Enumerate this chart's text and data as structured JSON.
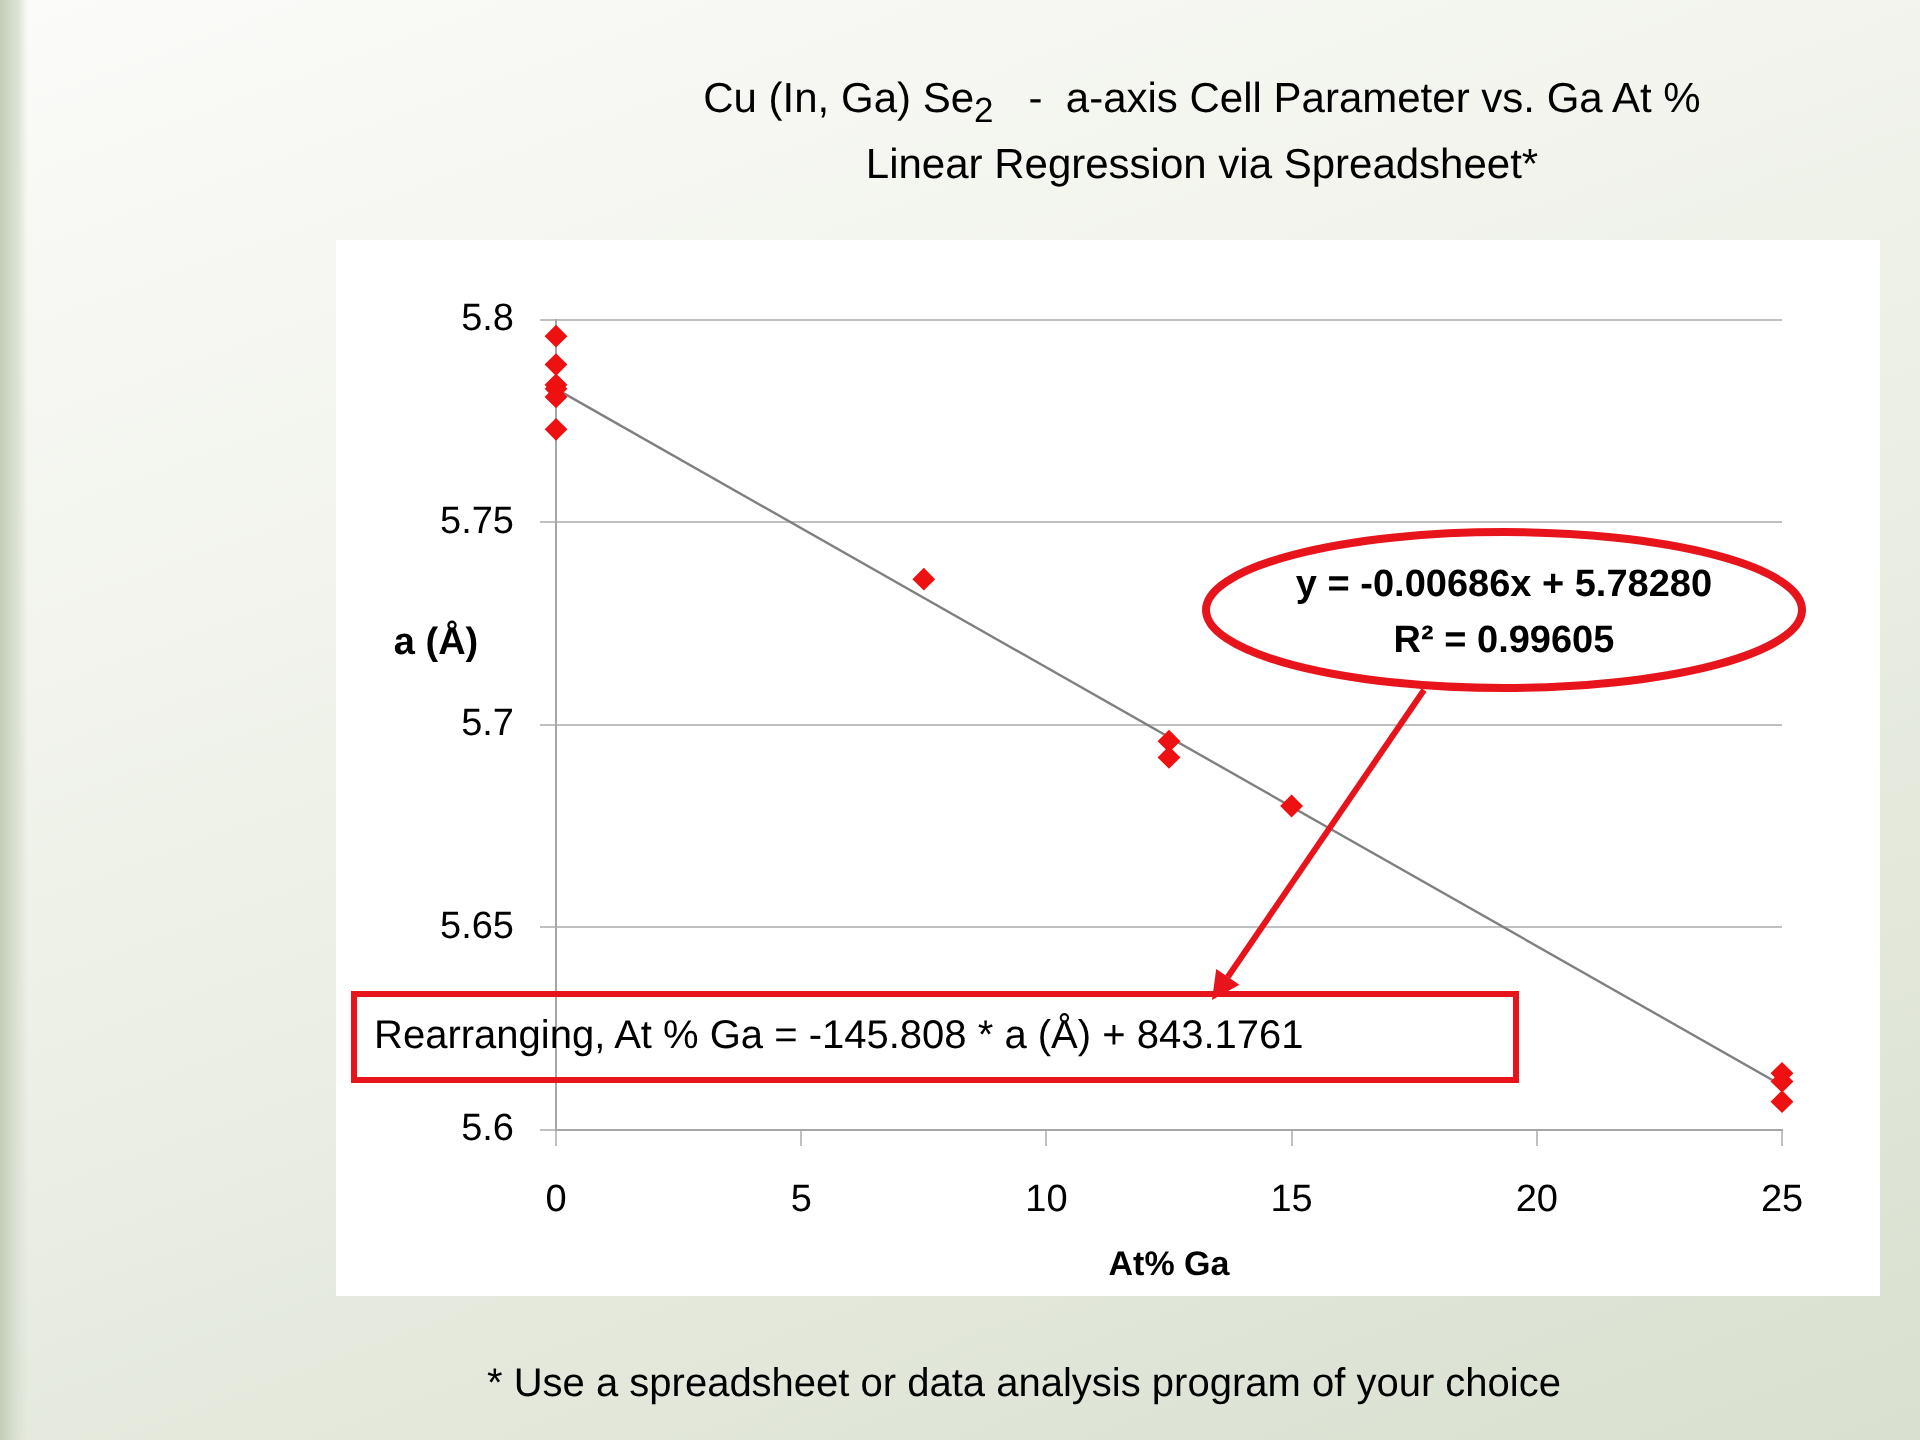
{
  "chart_data": {
    "type": "scatter",
    "title": "Cu (In, Ga) Se$_{2}$   -  a-axis Cell Parameter vs. Ga At %",
    "subtitle": "Linear Regression via Spreadsheet*",
    "xlabel": "At% Ga",
    "ylabel": "a (Å)",
    "series": [
      {
        "color": "#ee1111",
        "x": [
          0,
          0,
          0,
          0,
          0,
          0,
          7.5,
          12.5,
          12.5,
          15,
          25,
          25,
          25
        ],
        "values": [
          5.796,
          5.789,
          5.784,
          5.783,
          5.781,
          5.773,
          5.736,
          5.696,
          5.692,
          5.68,
          5.614,
          5.612,
          5.607
        ]
      },
      {
        "type": "line",
        "color": "#808080",
        "marker": "none",
        "x": [
          0,
          25
        ],
        "values": [
          5.783,
          5.611
        ]
      }
    ],
    "xlim": [
      0,
      25
    ],
    "xticks": [
      0,
      5,
      10,
      15,
      20,
      25
    ],
    "ylim": [
      5.6,
      5.8
    ],
    "yticks": [
      5.6,
      5.65,
      5.7,
      5.75,
      5.8
    ],
    "grid": "y",
    "legend": false,
    "marker": "diamond",
    "annotations": [
      "y = -0.00686x + 5.78280",
      "R² = 0.99605",
      "Rearranging, At % Ga = -145.808 * a (Å) + 843.1761",
      "* Use a spreadsheet or data analysis program of your choice"
    ]
  }
}
